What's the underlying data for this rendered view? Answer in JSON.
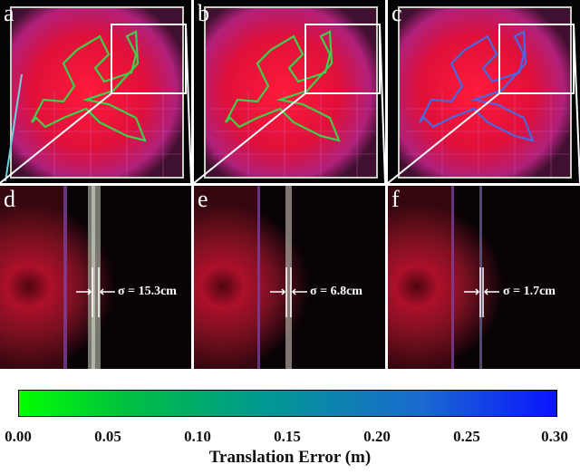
{
  "panels_top": [
    {
      "label": "a",
      "trajectory_color": "#3ed04a"
    },
    {
      "label": "b",
      "trajectory_color": "#3ed04a"
    },
    {
      "label": "c",
      "trajectory_color": "#4a66e0"
    }
  ],
  "panels_bottom": [
    {
      "label": "d",
      "sigma": "σ = 15.3cm"
    },
    {
      "label": "e",
      "sigma": "σ = 6.8cm"
    },
    {
      "label": "f",
      "sigma": "σ = 1.7cm"
    }
  ],
  "colorbar": {
    "ticks": [
      "0.00",
      "0.05",
      "0.10",
      "0.15",
      "0.20",
      "0.25",
      "0.30"
    ],
    "title": "Translation Error (m)",
    "colors": [
      "#00ff00",
      "#009a90",
      "#0a14ff"
    ]
  }
}
